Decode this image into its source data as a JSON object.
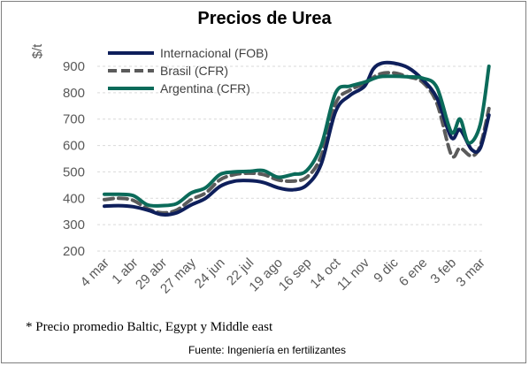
{
  "chart_data": {
    "type": "line",
    "title": "Precios de Urea",
    "ylabel": "$/t",
    "xlabel": "",
    "ylim": [
      200,
      900
    ],
    "yticks": [
      200,
      300,
      400,
      500,
      600,
      700,
      800,
      900
    ],
    "grid": "horizontal dashed",
    "legend_position": "top-left",
    "categories": [
      "4 mar",
      "1 abr",
      "29 abr",
      "27 may",
      "24 jun",
      "22 jul",
      "19 ago",
      "16 sep",
      "14 oct",
      "11 nov",
      "9 dic",
      "6 ene",
      "3 feb",
      "3 mar"
    ],
    "series": [
      {
        "name": "Internacional (FOB)",
        "color": "#0e1f5b",
        "style": "solid",
        "points": [
          [
            0,
            370
          ],
          [
            0.5,
            372
          ],
          [
            1,
            368
          ],
          [
            1.5,
            355
          ],
          [
            2,
            338
          ],
          [
            2.5,
            345
          ],
          [
            3,
            375
          ],
          [
            3.5,
            400
          ],
          [
            4,
            445
          ],
          [
            4.5,
            465
          ],
          [
            5,
            467
          ],
          [
            5.5,
            460
          ],
          [
            6,
            440
          ],
          [
            6.5,
            432
          ],
          [
            7,
            450
          ],
          [
            7.5,
            530
          ],
          [
            8,
            730
          ],
          [
            8.5,
            790
          ],
          [
            9,
            825
          ],
          [
            9.3,
            890
          ],
          [
            9.6,
            912
          ],
          [
            10,
            912
          ],
          [
            10.5,
            895
          ],
          [
            11,
            850
          ],
          [
            11.5,
            780
          ],
          [
            12,
            630
          ],
          [
            12.3,
            660
          ],
          [
            12.7,
            585
          ],
          [
            13,
            590
          ],
          [
            13.3,
            715
          ]
        ]
      },
      {
        "name": "Brasil (CFR)",
        "color": "#5b5b5b",
        "style": "dashed",
        "points": [
          [
            0,
            395
          ],
          [
            0.5,
            400
          ],
          [
            1,
            392
          ],
          [
            1.5,
            360
          ],
          [
            2,
            345
          ],
          [
            2.5,
            355
          ],
          [
            3,
            395
          ],
          [
            3.5,
            420
          ],
          [
            4,
            470
          ],
          [
            4.5,
            490
          ],
          [
            5,
            495
          ],
          [
            5.5,
            490
          ],
          [
            6,
            470
          ],
          [
            6.5,
            465
          ],
          [
            7,
            480
          ],
          [
            7.5,
            560
          ],
          [
            8,
            760
          ],
          [
            8.5,
            810
          ],
          [
            9,
            835
          ],
          [
            9.5,
            870
          ],
          [
            10,
            875
          ],
          [
            10.5,
            860
          ],
          [
            11,
            840
          ],
          [
            11.5,
            760
          ],
          [
            12,
            565
          ],
          [
            12.3,
            590
          ],
          [
            12.7,
            560
          ],
          [
            13,
            600
          ],
          [
            13.3,
            740
          ]
        ]
      },
      {
        "name": "Argentina (CFR)",
        "color": "#0b6b5a",
        "style": "solid",
        "points": [
          [
            0,
            415
          ],
          [
            0.5,
            415
          ],
          [
            1,
            410
          ],
          [
            1.5,
            375
          ],
          [
            2,
            372
          ],
          [
            2.5,
            380
          ],
          [
            3,
            420
          ],
          [
            3.5,
            440
          ],
          [
            4,
            490
          ],
          [
            4.5,
            500
          ],
          [
            5,
            502
          ],
          [
            5.5,
            505
          ],
          [
            6,
            480
          ],
          [
            6.5,
            490
          ],
          [
            7,
            505
          ],
          [
            7.5,
            600
          ],
          [
            8,
            800
          ],
          [
            8.5,
            825
          ],
          [
            9,
            840
          ],
          [
            9.5,
            860
          ],
          [
            10,
            862
          ],
          [
            10.5,
            860
          ],
          [
            11,
            855
          ],
          [
            11.5,
            820
          ],
          [
            12,
            650
          ],
          [
            12.3,
            700
          ],
          [
            12.6,
            610
          ],
          [
            13,
            680
          ],
          [
            13.3,
            900
          ]
        ]
      }
    ],
    "annotation": "* Precio promedio Baltic, Egypt y Middle east",
    "source": "Fuente: Ingeniería en fertilizantes"
  }
}
